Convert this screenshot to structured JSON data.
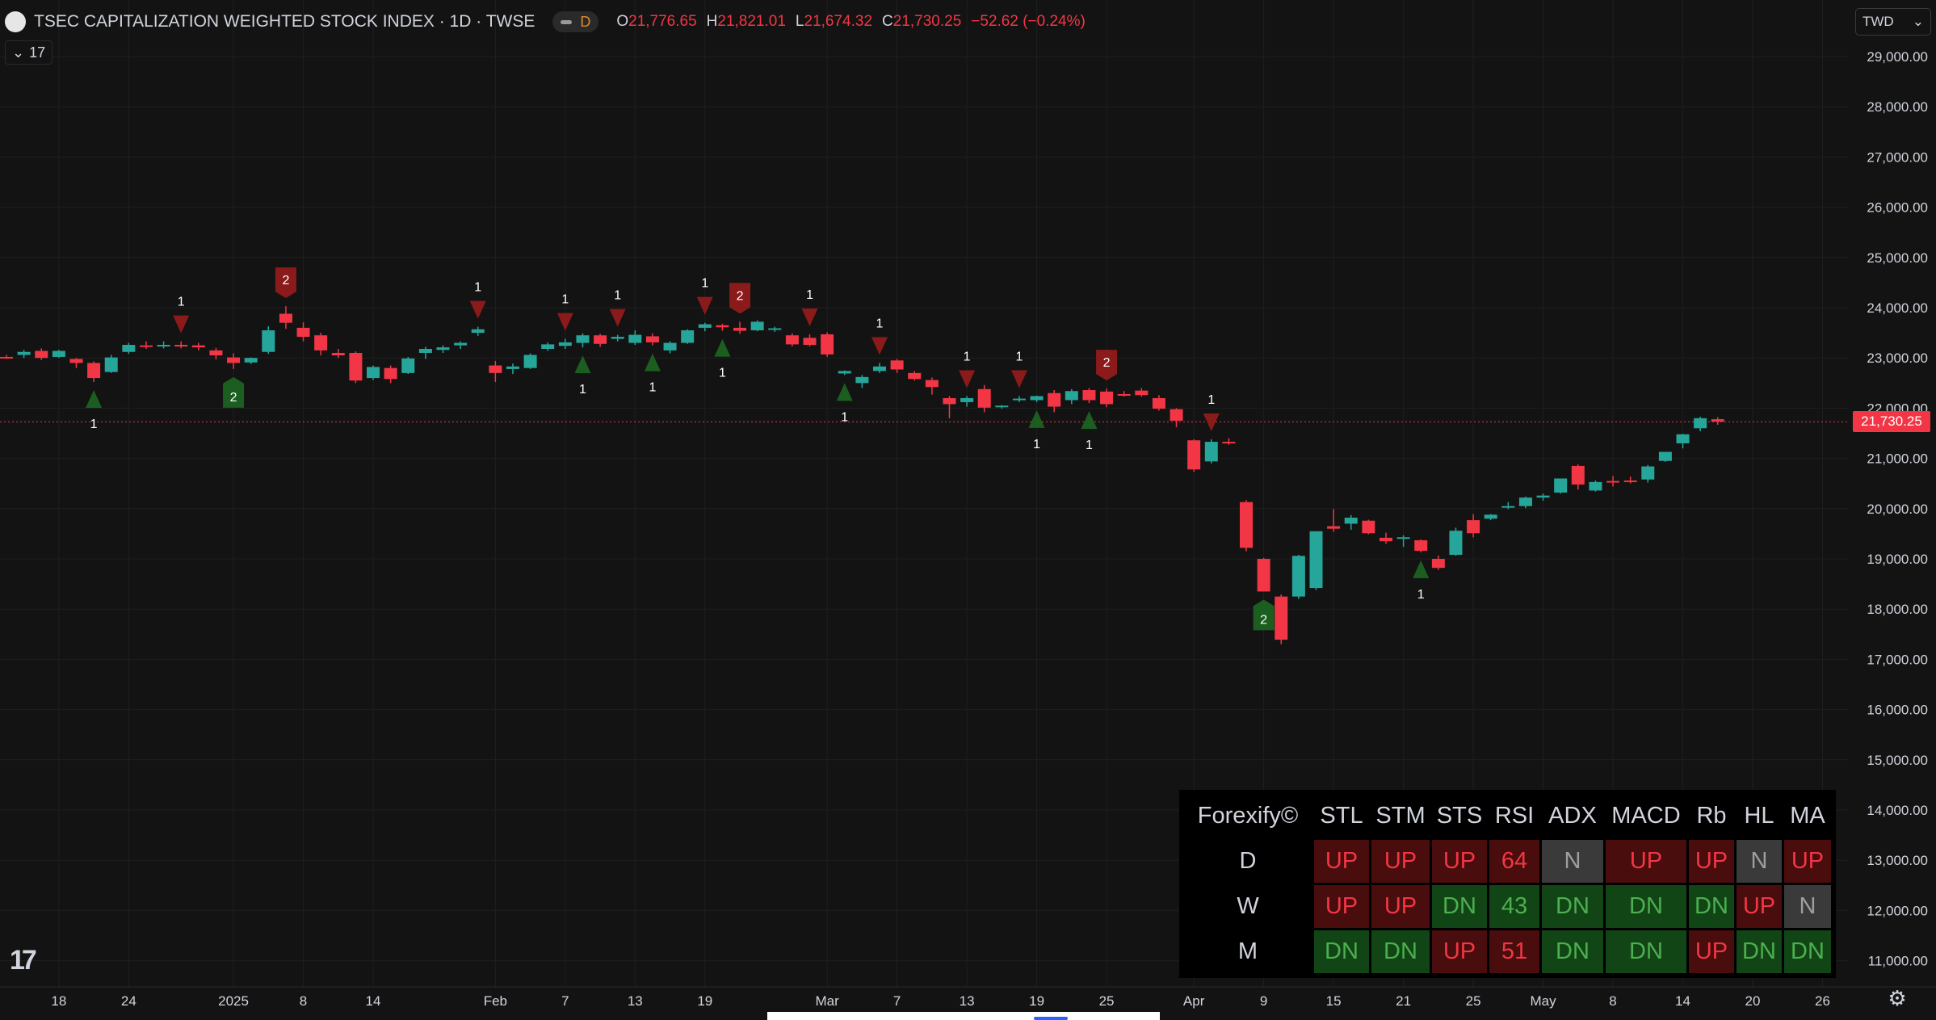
{
  "header": {
    "title": "TSEC CAPITALIZATION WEIGHTED STOCK INDEX · 1D · TWSE",
    "badge": "D",
    "ohlc": [
      {
        "k": "O",
        "v": "21,776.65"
      },
      {
        "k": "H",
        "v": "21,821.01"
      },
      {
        "k": "L",
        "v": "21,674.32"
      },
      {
        "k": "C",
        "v": "21,730.25"
      },
      {
        "k": "",
        "v": "−52.62 (−0.24%)"
      }
    ]
  },
  "collapse": {
    "label": "17"
  },
  "currency": {
    "label": "TWD"
  },
  "colors": {
    "up": "#26a69a",
    "down": "#f23645",
    "bg": "#131313",
    "grid": "#1f1f1f",
    "text": "#d1d4dc",
    "marker_up": "#1b5e20",
    "marker_down": "#8b1a1a"
  },
  "chart_data": {
    "type": "candlestick",
    "title": "TSEC CAPITALIZATION WEIGHTED STOCK INDEX · 1D · TWSE",
    "last_price": "21,730.25",
    "y_ticks": [
      "29,000.00",
      "28,000.00",
      "27,000.00",
      "26,000.00",
      "25,000.00",
      "24,000.00",
      "23,000.00",
      "22,000.00",
      "21,000.00",
      "20,000.00",
      "19,000.00",
      "18,000.00",
      "17,000.00",
      "16,000.00",
      "15,000.00",
      "14,000.00",
      "13,000.00",
      "12,000.00",
      "11,000.00"
    ],
    "y_tick_values": [
      29000,
      28000,
      27000,
      26000,
      25000,
      24000,
      23000,
      22000,
      21000,
      20000,
      19000,
      18000,
      17000,
      16000,
      15000,
      14000,
      13000,
      12000,
      11000
    ],
    "x_ticks": [
      {
        "label": "18",
        "i": 3
      },
      {
        "label": "24",
        "i": 7
      },
      {
        "label": "2025",
        "i": 13
      },
      {
        "label": "8",
        "i": 17
      },
      {
        "label": "14",
        "i": 21
      },
      {
        "label": "Feb",
        "i": 28
      },
      {
        "label": "7",
        "i": 32
      },
      {
        "label": "13",
        "i": 36
      },
      {
        "label": "19",
        "i": 40
      },
      {
        "label": "Mar",
        "i": 47
      },
      {
        "label": "7",
        "i": 51
      },
      {
        "label": "13",
        "i": 55
      },
      {
        "label": "19",
        "i": 59
      },
      {
        "label": "25",
        "i": 63
      },
      {
        "label": "Apr",
        "i": 68
      },
      {
        "label": "9",
        "i": 72
      },
      {
        "label": "15",
        "i": 76
      },
      {
        "label": "21",
        "i": 80
      },
      {
        "label": "25",
        "i": 84
      },
      {
        "label": "May",
        "i": 88
      },
      {
        "label": "8",
        "i": 92
      },
      {
        "label": "14",
        "i": 96
      },
      {
        "label": "20",
        "i": 100
      },
      {
        "label": "26",
        "i": 104
      }
    ],
    "candles": [
      [
        23020,
        23060,
        22980,
        23010
      ],
      [
        23060,
        23160,
        23000,
        23120
      ],
      [
        23140,
        23190,
        22960,
        23000
      ],
      [
        23020,
        23160,
        23000,
        23140
      ],
      [
        22980,
        23000,
        22800,
        22900
      ],
      [
        22900,
        22930,
        22520,
        22600
      ],
      [
        22720,
        23060,
        22700,
        23010
      ],
      [
        23120,
        23300,
        23080,
        23260
      ],
      [
        23250,
        23330,
        23180,
        23230
      ],
      [
        23250,
        23330,
        23190,
        23260
      ],
      [
        23260,
        23330,
        23190,
        23250
      ],
      [
        23250,
        23300,
        23150,
        23210
      ],
      [
        23150,
        23200,
        22970,
        23050
      ],
      [
        23010,
        23090,
        22780,
        22900
      ],
      [
        22910,
        23010,
        22880,
        23000
      ],
      [
        23120,
        23630,
        23080,
        23550
      ],
      [
        23880,
        24030,
        23580,
        23700
      ],
      [
        23600,
        23710,
        23330,
        23420
      ],
      [
        23450,
        23500,
        23050,
        23150
      ],
      [
        23100,
        23180,
        23000,
        23050
      ],
      [
        23100,
        23130,
        22500,
        22550
      ],
      [
        22600,
        22850,
        22560,
        22820
      ],
      [
        22800,
        22850,
        22500,
        22580
      ],
      [
        22700,
        23020,
        22680,
        22990
      ],
      [
        23100,
        23220,
        22980,
        23180
      ],
      [
        23160,
        23250,
        23100,
        23210
      ],
      [
        23250,
        23330,
        23180,
        23300
      ],
      [
        23500,
        23620,
        23440,
        23570
      ],
      [
        22850,
        22940,
        22520,
        22700
      ],
      [
        22780,
        22890,
        22680,
        22830
      ],
      [
        22800,
        23090,
        22780,
        23060
      ],
      [
        23180,
        23310,
        23140,
        23270
      ],
      [
        23240,
        23380,
        23180,
        23310
      ],
      [
        23300,
        23490,
        23210,
        23450
      ],
      [
        23450,
        23480,
        23220,
        23280
      ],
      [
        23380,
        23460,
        23330,
        23420
      ],
      [
        23300,
        23550,
        23260,
        23460
      ],
      [
        23430,
        23490,
        23250,
        23310
      ],
      [
        23150,
        23330,
        23090,
        23300
      ],
      [
        23300,
        23570,
        23280,
        23550
      ],
      [
        23600,
        23700,
        23530,
        23670
      ],
      [
        23650,
        23680,
        23540,
        23610
      ],
      [
        23600,
        23720,
        23480,
        23540
      ],
      [
        23550,
        23750,
        23530,
        23720
      ],
      [
        23570,
        23620,
        23520,
        23590
      ],
      [
        23450,
        23490,
        23230,
        23270
      ],
      [
        23400,
        23470,
        23230,
        23260
      ],
      [
        23470,
        23510,
        23020,
        23070
      ],
      [
        22690,
        22750,
        22660,
        22740
      ],
      [
        22500,
        22660,
        22400,
        22620
      ],
      [
        22740,
        22900,
        22700,
        22830
      ],
      [
        22950,
        22980,
        22700,
        22770
      ],
      [
        22700,
        22740,
        22550,
        22580
      ],
      [
        22560,
        22610,
        22270,
        22420
      ],
      [
        22200,
        22240,
        21800,
        22080
      ],
      [
        22120,
        22240,
        22030,
        22200
      ],
      [
        22380,
        22460,
        21920,
        22010
      ],
      [
        22020,
        22060,
        21990,
        22050
      ],
      [
        22180,
        22240,
        22120,
        22190
      ],
      [
        22160,
        22250,
        22120,
        22240
      ],
      [
        22300,
        22360,
        21920,
        22030
      ],
      [
        22160,
        22380,
        22080,
        22340
      ],
      [
        22360,
        22400,
        22100,
        22160
      ],
      [
        22330,
        22390,
        22020,
        22080
      ],
      [
        22280,
        22340,
        22230,
        22270
      ],
      [
        22350,
        22400,
        22230,
        22260
      ],
      [
        22200,
        22260,
        21950,
        21990
      ],
      [
        21980,
        22000,
        21620,
        21750
      ],
      [
        21360,
        21380,
        20730,
        20780
      ],
      [
        20940,
        21380,
        20900,
        21330
      ],
      [
        21330,
        21400,
        21270,
        21310
      ],
      [
        20130,
        20170,
        19150,
        19220
      ],
      [
        19000,
        19020,
        18350,
        18350
      ],
      [
        18250,
        18290,
        17300,
        17390
      ],
      [
        18250,
        19080,
        18200,
        19060
      ],
      [
        18420,
        19520,
        18380,
        19550
      ],
      [
        19650,
        19990,
        19540,
        19600
      ],
      [
        19700,
        19870,
        19580,
        19820
      ],
      [
        19760,
        19780,
        19490,
        19510
      ],
      [
        19420,
        19520,
        19300,
        19350
      ],
      [
        19400,
        19470,
        19240,
        19430
      ],
      [
        19370,
        19390,
        19130,
        19160
      ],
      [
        19000,
        19070,
        18780,
        18820
      ],
      [
        19080,
        19620,
        19060,
        19560
      ],
      [
        19770,
        19890,
        19430,
        19510
      ],
      [
        19800,
        19890,
        19770,
        19880
      ],
      [
        20040,
        20130,
        19990,
        20050
      ],
      [
        20050,
        20240,
        20010,
        20220
      ],
      [
        20220,
        20300,
        20160,
        20260
      ],
      [
        20320,
        20580,
        20300,
        20600
      ],
      [
        20850,
        20880,
        20380,
        20480
      ],
      [
        20360,
        20560,
        20340,
        20530
      ],
      [
        20550,
        20650,
        20440,
        20540
      ],
      [
        20560,
        20640,
        20500,
        20550
      ],
      [
        20580,
        20870,
        20520,
        20840
      ],
      [
        20950,
        21130,
        20930,
        21130
      ],
      [
        21300,
        21490,
        21200,
        21480
      ],
      [
        21600,
        21830,
        21540,
        21800
      ],
      [
        21780,
        21820,
        21670,
        21730
      ]
    ],
    "signals": [
      {
        "dir": "up",
        "i": 5,
        "n": 1
      },
      {
        "dir": "down",
        "i": 10,
        "n": 1
      },
      {
        "dir": "up",
        "i": 13,
        "n": 2
      },
      {
        "dir": "down",
        "i": 16,
        "n": 2
      },
      {
        "dir": "down",
        "i": 27,
        "n": 1
      },
      {
        "dir": "down",
        "i": 32,
        "n": 1
      },
      {
        "dir": "up",
        "i": 33,
        "n": 1
      },
      {
        "dir": "down",
        "i": 35,
        "n": 1
      },
      {
        "dir": "up",
        "i": 37,
        "n": 1
      },
      {
        "dir": "down",
        "i": 40,
        "n": 1
      },
      {
        "dir": "up",
        "i": 41,
        "n": 1
      },
      {
        "dir": "down",
        "i": 42,
        "n": 2
      },
      {
        "dir": "down",
        "i": 46,
        "n": 1
      },
      {
        "dir": "up",
        "i": 48,
        "n": 1
      },
      {
        "dir": "down",
        "i": 50,
        "n": 1
      },
      {
        "dir": "down",
        "i": 55,
        "n": 1
      },
      {
        "dir": "down",
        "i": 58,
        "n": 1
      },
      {
        "dir": "up",
        "i": 59,
        "n": 1
      },
      {
        "dir": "up",
        "i": 62,
        "n": 1
      },
      {
        "dir": "down",
        "i": 63,
        "n": 2
      },
      {
        "dir": "down",
        "i": 69,
        "n": 1
      },
      {
        "dir": "up",
        "i": 72,
        "n": 2
      },
      {
        "dir": "up",
        "i": 81,
        "n": 1
      }
    ]
  },
  "forexify": {
    "title": "Forexify©",
    "columns": [
      "STL",
      "STM",
      "STS",
      "RSI",
      "ADX",
      "MACD",
      "Rb",
      "HL",
      "MA"
    ],
    "rows": [
      {
        "label": "D",
        "cells": [
          {
            "t": "UP",
            "s": "up"
          },
          {
            "t": "UP",
            "s": "up"
          },
          {
            "t": "UP",
            "s": "up"
          },
          {
            "t": "64",
            "s": "up"
          },
          {
            "t": "N",
            "s": "n"
          },
          {
            "t": "UP",
            "s": "up"
          },
          {
            "t": "UP",
            "s": "up"
          },
          {
            "t": "N",
            "s": "n"
          },
          {
            "t": "UP",
            "s": "up"
          }
        ]
      },
      {
        "label": "W",
        "cells": [
          {
            "t": "UP",
            "s": "up"
          },
          {
            "t": "UP",
            "s": "up"
          },
          {
            "t": "DN",
            "s": "dn"
          },
          {
            "t": "43",
            "s": "dn"
          },
          {
            "t": "DN",
            "s": "dn"
          },
          {
            "t": "DN",
            "s": "dn"
          },
          {
            "t": "DN",
            "s": "dn"
          },
          {
            "t": "UP",
            "s": "up"
          },
          {
            "t": "N",
            "s": "n"
          }
        ]
      },
      {
        "label": "M",
        "cells": [
          {
            "t": "DN",
            "s": "dn"
          },
          {
            "t": "DN",
            "s": "dn"
          },
          {
            "t": "UP",
            "s": "up"
          },
          {
            "t": "51",
            "s": "up"
          },
          {
            "t": "DN",
            "s": "dn"
          },
          {
            "t": "DN",
            "s": "dn"
          },
          {
            "t": "UP",
            "s": "up"
          },
          {
            "t": "DN",
            "s": "dn"
          },
          {
            "t": "DN",
            "s": "dn"
          }
        ]
      }
    ]
  }
}
